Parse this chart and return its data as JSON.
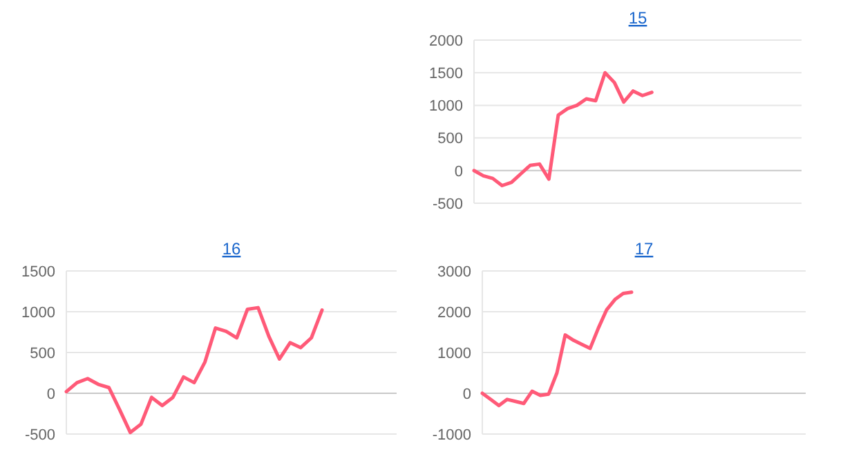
{
  "chart_data": [
    {
      "type": "line",
      "title": "15",
      "categories": [
        null,
        null,
        null,
        null,
        null,
        null,
        null,
        null,
        null,
        null,
        null,
        null,
        null,
        null,
        null,
        null,
        null,
        null,
        null,
        null,
        null,
        null,
        null,
        null,
        null,
        null,
        null,
        null,
        null,
        null,
        null,
        null,
        null,
        null,
        null,
        null
      ],
      "series": [
        {
          "color": "#ff5a78",
          "values": [
            0,
            -80,
            -120,
            -230,
            -180,
            -50,
            80,
            100,
            -130,
            850,
            950,
            1000,
            1100,
            1070,
            1500,
            1350,
            1050,
            1220,
            1150,
            1200,
            null,
            null,
            null,
            null,
            null,
            null,
            null,
            null,
            null,
            null,
            null,
            null,
            null,
            null,
            null,
            null
          ]
        }
      ],
      "ylim": [
        -500,
        2000
      ],
      "yticks": [
        -500,
        0,
        500,
        1000,
        1500,
        2000
      ],
      "grid": "y",
      "marker": "none",
      "line_style": "solid"
    },
    {
      "type": "line",
      "title": "16",
      "categories": [
        null,
        null,
        null,
        null,
        null,
        null,
        null,
        null,
        null,
        null,
        null,
        null,
        null,
        null,
        null,
        null,
        null,
        null,
        null,
        null,
        null,
        null,
        null,
        null,
        null,
        null,
        null,
        null,
        null,
        null,
        null,
        null
      ],
      "series": [
        {
          "color": "#ff5a78",
          "values": [
            20,
            130,
            180,
            110,
            70,
            -200,
            -480,
            -380,
            -50,
            -150,
            -50,
            200,
            130,
            380,
            800,
            760,
            680,
            1030,
            1050,
            700,
            420,
            620,
            560,
            680,
            1020,
            null,
            null,
            null,
            null,
            null,
            null,
            null
          ]
        }
      ],
      "ylim": [
        -500,
        1500
      ],
      "yticks": [
        -500,
        0,
        500,
        1000,
        1500
      ],
      "grid": "y",
      "marker": "none",
      "line_style": "solid"
    },
    {
      "type": "line",
      "title": "17",
      "categories": [
        null,
        null,
        null,
        null,
        null,
        null,
        null,
        null,
        null,
        null,
        null,
        null,
        null,
        null,
        null,
        null,
        null,
        null,
        null,
        null,
        null,
        null,
        null,
        null,
        null,
        null,
        null,
        null,
        null,
        null,
        null,
        null,
        null,
        null,
        null,
        null,
        null,
        null,
        null,
        null
      ],
      "series": [
        {
          "color": "#ff5a78",
          "values": [
            0,
            -150,
            -300,
            -150,
            -200,
            -250,
            50,
            -50,
            -20,
            500,
            1430,
            1300,
            1200,
            1100,
            1600,
            2050,
            2300,
            2450,
            2480,
            null,
            null,
            null,
            null,
            null,
            null,
            null,
            null,
            null,
            null,
            null,
            null,
            null,
            null,
            null,
            null,
            null,
            null,
            null,
            null,
            null
          ]
        }
      ],
      "ylim": [
        -1000,
        3000
      ],
      "yticks": [
        -1000,
        0,
        1000,
        2000,
        3000
      ],
      "grid": "y",
      "marker": "none",
      "line_style": "solid"
    }
  ]
}
